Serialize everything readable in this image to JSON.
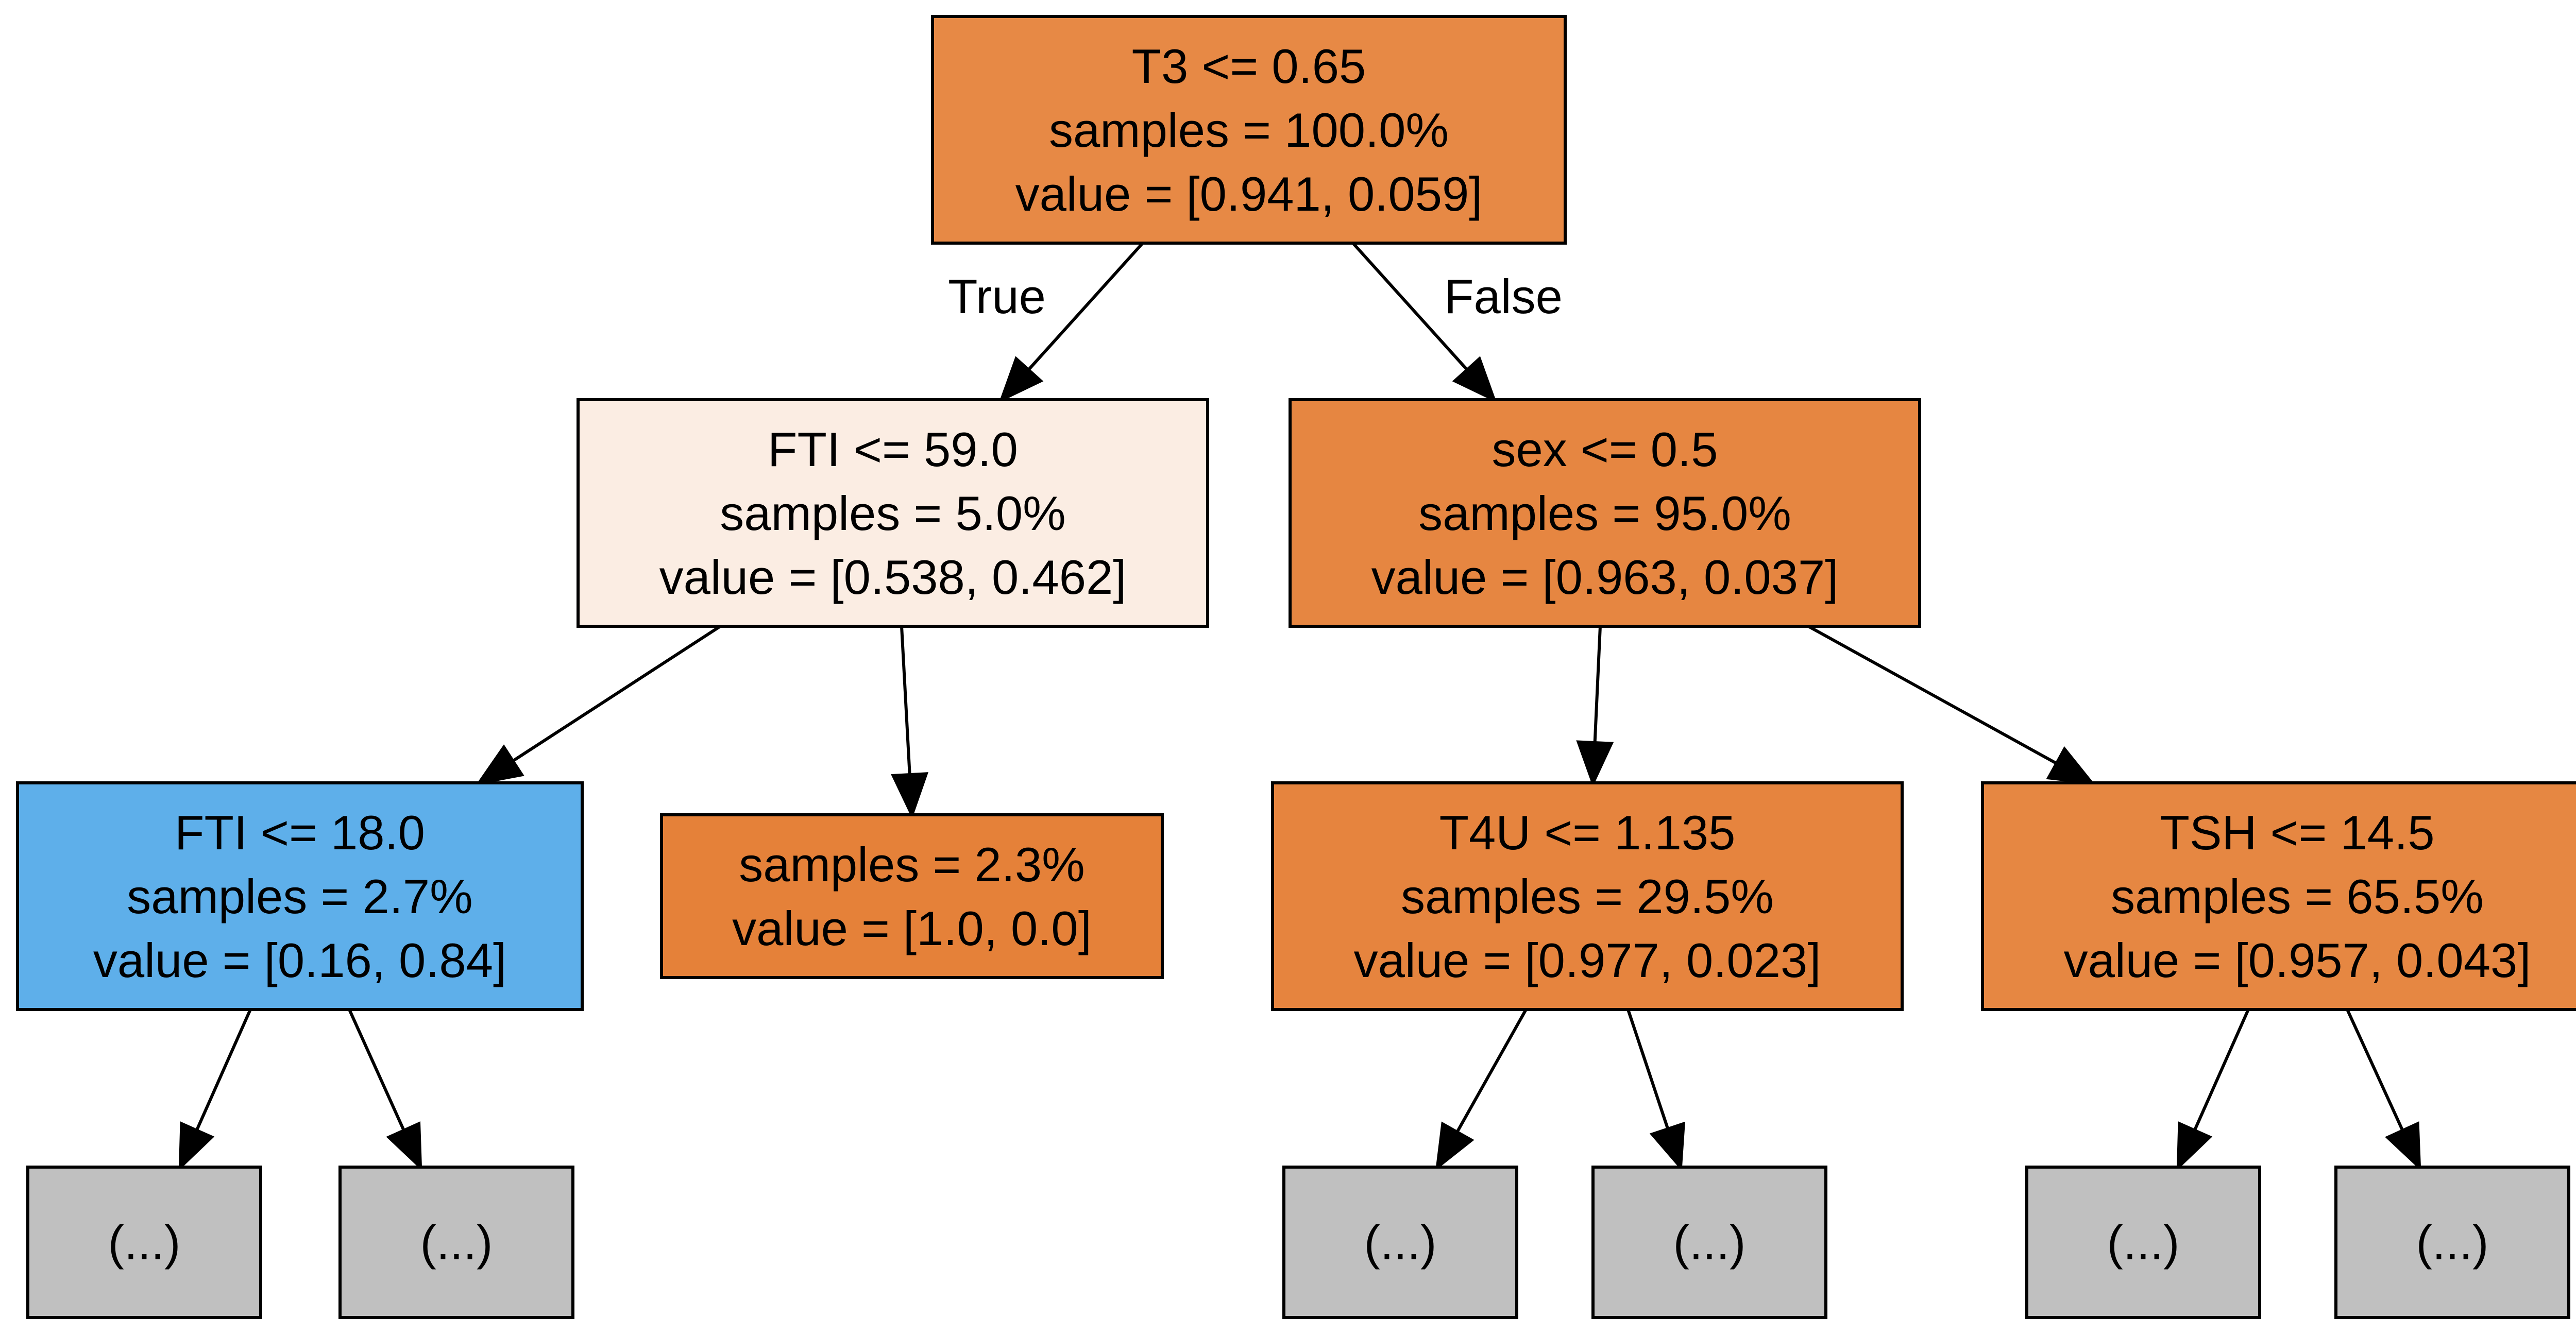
{
  "colors": {
    "orange": "#e58139",
    "light_orange": "#fbede3",
    "blue": "#5daeea",
    "gray": "#c0c0c0",
    "edge": "#000000"
  },
  "edge_labels": {
    "true_label": "True",
    "false_label": "False"
  },
  "nodes": {
    "root": {
      "lines": [
        "T3 <= 0.65",
        "samples = 100.0%",
        "value = [0.941, 0.059]"
      ],
      "fill": "#e78945"
    },
    "fti_59": {
      "lines": [
        "FTI <= 59.0",
        "samples = 5.0%",
        "value = [0.538, 0.462]"
      ],
      "fill": "#fbede3"
    },
    "sex_05": {
      "lines": [
        "sex <= 0.5",
        "samples = 95.0%",
        "value = [0.963, 0.037]"
      ],
      "fill": "#e68641"
    },
    "fti_18": {
      "lines": [
        "FTI <= 18.0",
        "samples = 2.7%",
        "value = [0.16, 0.84]"
      ],
      "fill": "#5eafea"
    },
    "leaf_23": {
      "lines": [
        "samples = 2.3%",
        "value = [1.0, 0.0]"
      ],
      "fill": "#e58139"
    },
    "t4u": {
      "lines": [
        "T4U <= 1.135",
        "samples = 29.5%",
        "value = [0.977, 0.023]"
      ],
      "fill": "#e6843e"
    },
    "tsh": {
      "lines": [
        "TSH <= 14.5",
        "samples = 65.5%",
        "value = [0.957, 0.043]"
      ],
      "fill": "#e68742"
    },
    "trunc_1": {
      "lines": [
        "(...)"
      ],
      "fill": "#c0c0c0"
    },
    "trunc_2": {
      "lines": [
        "(...)"
      ],
      "fill": "#c0c0c0"
    },
    "trunc_3": {
      "lines": [
        "(...)"
      ],
      "fill": "#c0c0c0"
    },
    "trunc_4": {
      "lines": [
        "(...)"
      ],
      "fill": "#c0c0c0"
    },
    "trunc_5": {
      "lines": [
        "(...)"
      ],
      "fill": "#c0c0c0"
    },
    "trunc_6": {
      "lines": [
        "(...)"
      ],
      "fill": "#c0c0c0"
    }
  }
}
